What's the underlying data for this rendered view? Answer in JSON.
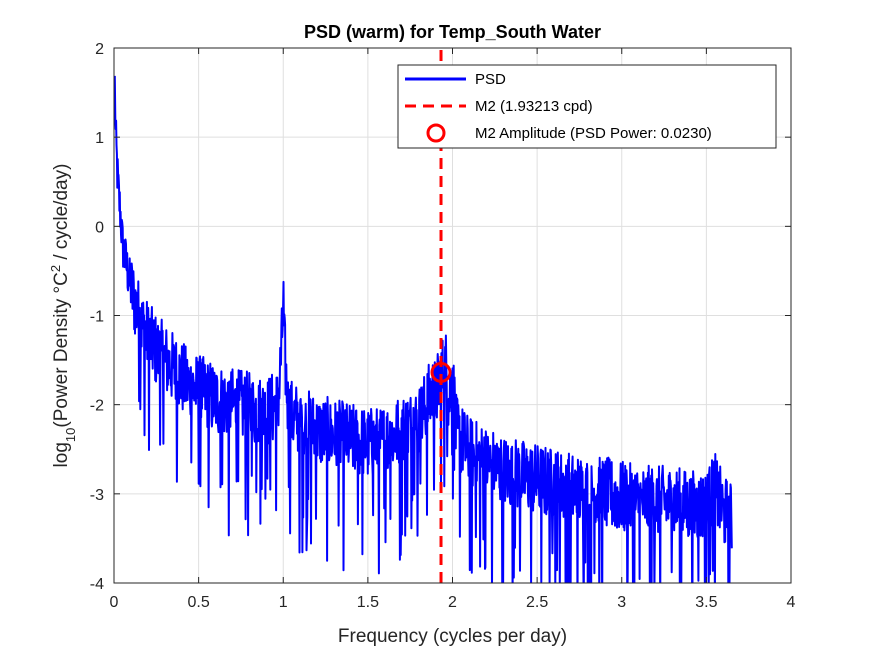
{
  "chart_data": {
    "type": "line",
    "title": "PSD (warm) for Temp_South Water",
    "xlabel": "Frequency (cycles per day)",
    "ylabel_parts": {
      "prefix": "log",
      "sub": "10",
      "mid": "(Power Density ",
      "deg": "°C",
      "sup": "2",
      "suffix": " / cycle/day)"
    },
    "xlim": [
      0,
      4
    ],
    "ylim": [
      -4,
      2
    ],
    "xticks": [
      0,
      0.5,
      1,
      1.5,
      2,
      2.5,
      3,
      3.5,
      4
    ],
    "xtick_labels": [
      "0",
      "0.5",
      "1",
      "1.5",
      "2",
      "2.5",
      "3",
      "3.5",
      "4"
    ],
    "yticks": [
      -4,
      -3,
      -2,
      -1,
      0,
      1,
      2
    ],
    "ytick_labels": [
      "-4",
      "-3",
      "-2",
      "-1",
      "0",
      "1",
      "2"
    ],
    "grid": true,
    "legend_position": "top-right",
    "colors": {
      "psd": "#0000ff",
      "m2": "#ff0000",
      "grid": "#dfdfdf",
      "axis": "#262626"
    },
    "series": [
      {
        "name": "PSD",
        "style": "solid",
        "x": [
          0.005,
          0.01,
          0.02,
          0.03,
          0.04,
          0.05,
          0.07,
          0.1,
          0.13,
          0.16,
          0.2,
          0.25,
          0.3,
          0.35,
          0.4,
          0.45,
          0.5,
          0.6,
          0.7,
          0.8,
          0.9,
          0.97,
          0.995,
          1.0,
          1.005,
          1.03,
          1.1,
          1.2,
          1.3,
          1.4,
          1.5,
          1.6,
          1.7,
          1.75,
          1.8,
          1.85,
          1.88,
          1.9,
          1.93,
          1.96,
          1.98,
          2.0,
          2.02,
          2.05,
          2.1,
          2.2,
          2.3,
          2.4,
          2.5,
          2.6,
          2.7,
          2.8,
          2.9,
          3.0,
          3.1,
          3.2,
          3.3,
          3.4,
          3.5,
          3.55,
          3.6,
          3.65
        ],
        "y": [
          1.6,
          1.0,
          0.6,
          0.3,
          0.1,
          -0.2,
          -0.4,
          -0.7,
          -0.9,
          -1.1,
          -1.25,
          -1.4,
          -1.5,
          -1.6,
          -1.7,
          -1.8,
          -1.85,
          -1.95,
          -2.0,
          -2.05,
          -2.1,
          -2.0,
          -1.2,
          -0.75,
          -1.3,
          -2.1,
          -2.2,
          -2.3,
          -2.35,
          -2.4,
          -2.45,
          -2.4,
          -2.3,
          -2.25,
          -2.2,
          -2.0,
          -1.85,
          -1.9,
          -1.7,
          -1.55,
          -2.0,
          -1.6,
          -2.3,
          -2.4,
          -2.55,
          -2.65,
          -2.75,
          -2.8,
          -2.85,
          -2.9,
          -2.95,
          -3.0,
          -3.0,
          -3.05,
          -3.1,
          -3.1,
          -3.1,
          -3.15,
          -3.15,
          -2.95,
          -3.2,
          -3.3
        ]
      },
      {
        "name": "M2 (1.93213 cpd)",
        "style": "dashed",
        "x": [
          1.93213,
          1.93213
        ],
        "y": [
          -4,
          2
        ]
      }
    ],
    "markers": [
      {
        "name": "M2 Amplitude (PSD Power: 0.0230)",
        "x": 1.93213,
        "y": -1.638
      }
    ],
    "legend_items": [
      {
        "label": "PSD",
        "kind": "line"
      },
      {
        "label": "M2 (1.93213 cpd)",
        "kind": "dashed"
      },
      {
        "label": "M2 Amplitude (PSD Power: 0.0230)",
        "kind": "circle"
      }
    ]
  }
}
